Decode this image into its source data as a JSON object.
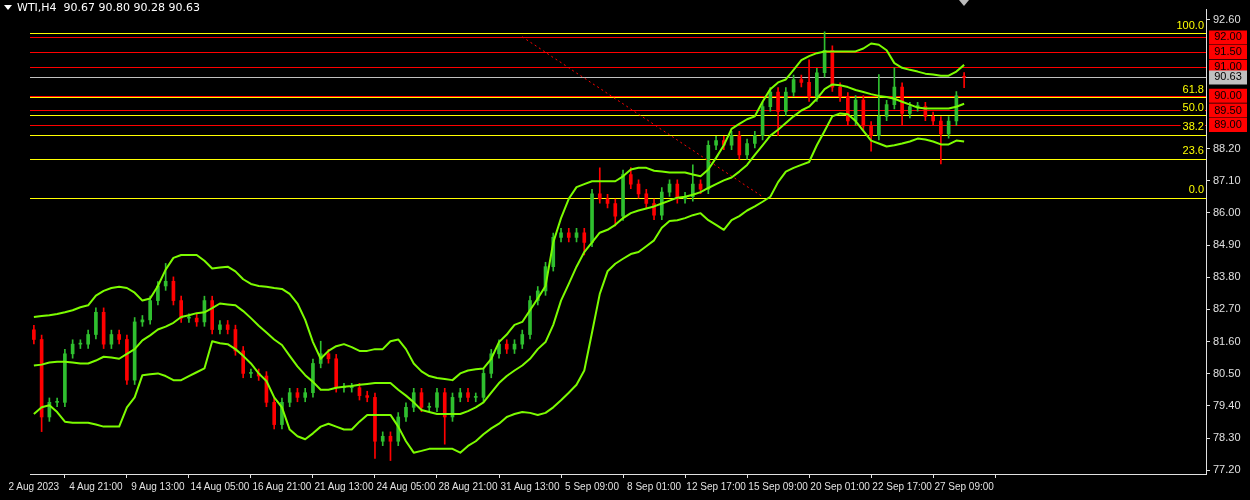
{
  "chart_data": {
    "type": "candlestick",
    "title": "WTI,H4  90.67 90.80 90.28 90.63",
    "categories": [
      "2 Aug 2023",
      null,
      null,
      null,
      null,
      null,
      null,
      null,
      "4 Aug 21:00",
      null,
      null,
      null,
      null,
      null,
      null,
      null,
      "9 Aug 13:00",
      null,
      null,
      null,
      null,
      null,
      null,
      null,
      "14 Aug 05:00",
      null,
      null,
      null,
      null,
      null,
      null,
      null,
      "16 Aug 21:00",
      null,
      null,
      null,
      null,
      null,
      null,
      null,
      "21 Aug 13:00",
      null,
      null,
      null,
      null,
      null,
      null,
      null,
      "24 Aug 05:00",
      null,
      null,
      null,
      null,
      null,
      null,
      null,
      "28 Aug 21:00",
      null,
      null,
      null,
      null,
      null,
      null,
      null,
      "31 Aug 13:00",
      null,
      null,
      null,
      null,
      null,
      null,
      null,
      "5 Sep 09:00",
      null,
      null,
      null,
      null,
      null,
      null,
      null,
      "8 Sep 01:00",
      null,
      null,
      null,
      null,
      null,
      null,
      null,
      "12 Sep 17:00",
      null,
      null,
      null,
      null,
      null,
      null,
      null,
      "15 Sep 09:00",
      null,
      null,
      null,
      null,
      null,
      null,
      null,
      "20 Sep 01:00",
      null,
      null,
      null,
      null,
      null,
      null,
      null,
      "22 Sep 17:00",
      null,
      null,
      null,
      null,
      null,
      null,
      null,
      "27 Sep 09:00"
    ],
    "ohlc": [
      [
        82.0,
        82.15,
        81.52,
        81.67
      ],
      [
        81.67,
        81.82,
        78.52,
        79.02
      ],
      [
        79.02,
        79.67,
        78.87,
        79.52
      ],
      [
        79.52,
        79.67,
        79.37,
        79.52
      ],
      [
        79.52,
        81.33,
        79.37,
        81.18
      ],
      [
        81.18,
        81.66,
        81.03,
        81.51
      ],
      [
        81.51,
        81.66,
        81.36,
        81.51
      ],
      [
        81.51,
        81.99,
        81.36,
        81.84
      ],
      [
        81.84,
        82.75,
        81.69,
        82.6
      ],
      [
        82.6,
        82.75,
        81.36,
        81.51
      ],
      [
        81.51,
        81.99,
        81.36,
        81.84
      ],
      [
        81.84,
        81.99,
        81.52,
        81.67
      ],
      [
        81.67,
        81.82,
        80.13,
        80.28
      ],
      [
        80.28,
        82.42,
        80.13,
        82.27
      ],
      [
        82.27,
        82.49,
        82.12,
        82.34
      ],
      [
        82.34,
        83.15,
        82.19,
        83.0
      ],
      [
        83.0,
        83.65,
        82.85,
        83.5
      ],
      [
        83.5,
        84.27,
        83.35,
        83.66
      ],
      [
        83.66,
        83.81,
        82.85,
        83.0
      ],
      [
        83.0,
        83.15,
        82.25,
        82.4
      ],
      [
        82.4,
        82.55,
        82.25,
        82.4
      ],
      [
        82.4,
        82.55,
        82.12,
        82.27
      ],
      [
        82.27,
        83.15,
        82.12,
        83.0
      ],
      [
        83.0,
        83.15,
        81.86,
        82.01
      ],
      [
        82.01,
        82.32,
        81.86,
        82.17
      ],
      [
        82.17,
        82.32,
        81.86,
        82.01
      ],
      [
        82.01,
        82.16,
        81.13,
        81.28
      ],
      [
        81.28,
        81.43,
        80.36,
        80.51
      ],
      [
        80.51,
        80.66,
        80.36,
        80.51
      ],
      [
        80.51,
        80.66,
        80.27,
        80.42
      ],
      [
        80.42,
        80.57,
        79.37,
        79.52
      ],
      [
        79.52,
        79.67,
        78.61,
        78.76
      ],
      [
        78.76,
        79.67,
        78.61,
        79.52
      ],
      [
        79.52,
        80.0,
        79.37,
        79.85
      ],
      [
        79.85,
        80.0,
        79.54,
        79.69
      ],
      [
        79.69,
        80.0,
        79.54,
        79.85
      ],
      [
        79.85,
        81.0,
        79.7,
        80.85
      ],
      [
        80.85,
        81.61,
        80.7,
        81.18
      ],
      [
        81.18,
        81.33,
        80.86,
        81.01
      ],
      [
        81.01,
        81.16,
        79.87,
        80.02
      ],
      [
        80.02,
        80.17,
        79.87,
        80.02
      ],
      [
        80.02,
        80.17,
        79.87,
        80.02
      ],
      [
        80.02,
        80.17,
        79.6,
        79.75
      ],
      [
        79.75,
        79.9,
        79.54,
        79.69
      ],
      [
        79.69,
        79.84,
        77.6,
        78.19
      ],
      [
        78.19,
        78.51,
        78.04,
        78.36
      ],
      [
        78.36,
        78.51,
        77.53,
        78.19
      ],
      [
        78.19,
        79.17,
        78.04,
        79.02
      ],
      [
        79.02,
        79.5,
        78.87,
        79.35
      ],
      [
        79.35,
        80.0,
        79.2,
        79.85
      ],
      [
        79.85,
        80.0,
        79.2,
        79.35
      ],
      [
        79.35,
        79.5,
        79.2,
        79.35
      ],
      [
        79.35,
        80.0,
        79.2,
        79.85
      ],
      [
        79.85,
        80.0,
        78.09,
        79.02
      ],
      [
        79.02,
        79.84,
        78.87,
        79.69
      ],
      [
        79.69,
        80.0,
        79.54,
        79.85
      ],
      [
        79.85,
        80.0,
        79.54,
        79.69
      ],
      [
        79.69,
        79.84,
        79.54,
        79.69
      ],
      [
        79.69,
        80.66,
        79.54,
        80.51
      ],
      [
        80.51,
        81.33,
        80.36,
        81.18
      ],
      [
        81.18,
        81.66,
        81.03,
        81.51
      ],
      [
        81.51,
        81.66,
        81.19,
        81.34
      ],
      [
        81.34,
        81.66,
        81.19,
        81.51
      ],
      [
        81.51,
        81.99,
        81.36,
        81.84
      ],
      [
        81.84,
        83.15,
        81.69,
        83.0
      ],
      [
        83.0,
        83.48,
        82.85,
        83.33
      ],
      [
        83.33,
        84.31,
        83.18,
        84.16
      ],
      [
        84.16,
        85.31,
        84.01,
        85.16
      ],
      [
        85.16,
        85.47,
        85.01,
        85.32
      ],
      [
        85.32,
        85.47,
        85.01,
        85.16
      ],
      [
        85.16,
        85.47,
        85.01,
        85.32
      ],
      [
        85.32,
        85.47,
        84.56,
        84.99
      ],
      [
        84.99,
        86.8,
        84.84,
        86.65
      ],
      [
        86.65,
        87.54,
        86.33,
        86.48
      ],
      [
        86.48,
        86.63,
        86.17,
        86.32
      ],
      [
        86.32,
        86.47,
        85.55,
        85.89
      ],
      [
        85.89,
        87.46,
        85.74,
        87.31
      ],
      [
        87.31,
        87.55,
        86.83,
        86.98
      ],
      [
        86.98,
        87.13,
        86.5,
        86.65
      ],
      [
        86.65,
        86.8,
        86.17,
        86.32
      ],
      [
        86.32,
        86.47,
        85.77,
        85.92
      ],
      [
        85.92,
        86.86,
        85.77,
        86.71
      ],
      [
        86.71,
        87.13,
        86.56,
        86.98
      ],
      [
        86.98,
        87.13,
        86.33,
        86.48
      ],
      [
        86.48,
        86.7,
        86.33,
        86.55
      ],
      [
        86.55,
        87.64,
        86.4,
        86.98
      ],
      [
        86.98,
        87.13,
        86.66,
        86.81
      ],
      [
        86.81,
        88.46,
        86.66,
        88.31
      ],
      [
        88.31,
        88.62,
        88.16,
        88.47
      ],
      [
        88.47,
        88.62,
        88.16,
        88.31
      ],
      [
        88.31,
        88.79,
        88.16,
        88.64
      ],
      [
        88.64,
        88.79,
        87.83,
        87.98
      ],
      [
        87.98,
        88.52,
        87.83,
        88.37
      ],
      [
        88.37,
        88.79,
        88.22,
        88.64
      ],
      [
        88.64,
        89.78,
        88.49,
        89.63
      ],
      [
        89.63,
        90.28,
        89.48,
        90.13
      ],
      [
        90.13,
        90.28,
        88.64,
        89.47
      ],
      [
        89.47,
        90.28,
        89.32,
        90.13
      ],
      [
        90.13,
        90.71,
        89.98,
        90.56
      ],
      [
        90.56,
        90.71,
        90.31,
        90.46
      ],
      [
        90.46,
        91.23,
        89.81,
        89.96
      ],
      [
        89.96,
        90.94,
        89.81,
        90.79
      ],
      [
        90.79,
        92.19,
        90.64,
        91.56
      ],
      [
        91.56,
        91.71,
        90.15,
        90.3
      ],
      [
        90.3,
        90.45,
        89.81,
        89.96
      ],
      [
        89.96,
        90.11,
        88.99,
        89.14
      ],
      [
        89.14,
        90.01,
        88.99,
        89.86
      ],
      [
        89.86,
        90.01,
        88.82,
        88.97
      ],
      [
        88.97,
        89.12,
        88.11,
        88.64
      ],
      [
        88.64,
        90.73,
        88.49,
        89.3
      ],
      [
        89.3,
        89.85,
        89.15,
        89.7
      ],
      [
        89.7,
        90.96,
        89.55,
        90.3
      ],
      [
        90.3,
        90.45,
        89.01,
        89.4
      ],
      [
        89.4,
        89.78,
        89.25,
        89.63
      ],
      [
        89.63,
        89.78,
        89.48,
        89.63
      ],
      [
        89.63,
        89.78,
        89.15,
        89.3
      ],
      [
        89.3,
        89.45,
        88.99,
        89.14
      ],
      [
        89.14,
        89.29,
        87.67,
        88.7
      ],
      [
        88.7,
        89.29,
        88.55,
        89.14
      ],
      [
        89.14,
        90.15,
        88.99,
        90.0
      ],
      [
        90.67,
        90.8,
        90.28,
        90.63
      ]
    ],
    "series": [
      {
        "type": "line",
        "color": "#7cfc00",
        "values": [
          82.44,
          82.47,
          82.5,
          82.54,
          82.6,
          82.67,
          82.77,
          82.84,
          83.17,
          83.33,
          83.43,
          83.47,
          83.43,
          83.27,
          83.0,
          83.07,
          83.5,
          84.06,
          84.46,
          84.56,
          84.56,
          84.56,
          84.36,
          84.1,
          84.13,
          84.16,
          84.0,
          83.73,
          83.57,
          83.5,
          83.47,
          83.43,
          83.4,
          83.23,
          82.9,
          82.34,
          81.58,
          81.01,
          81.28,
          81.44,
          81.51,
          81.41,
          81.28,
          81.28,
          81.34,
          81.34,
          81.61,
          81.67,
          81.34,
          80.85,
          80.58,
          80.42,
          80.35,
          80.32,
          80.28,
          80.51,
          80.61,
          80.65,
          80.68,
          81.01,
          81.58,
          81.84,
          82.17,
          82.27,
          82.67,
          83.07,
          83.5,
          84.99,
          85.82,
          86.48,
          86.88,
          86.98,
          87.08,
          87.08,
          87.08,
          87.08,
          87.25,
          87.48,
          87.54,
          87.54,
          87.44,
          87.41,
          87.38,
          87.38,
          87.38,
          87.31,
          87.25,
          87.48,
          87.88,
          88.31,
          88.87,
          89.04,
          89.2,
          89.3,
          89.8,
          90.23,
          90.46,
          90.56,
          90.89,
          91.22,
          91.36,
          91.46,
          91.52,
          91.52,
          91.52,
          91.52,
          91.52,
          91.62,
          91.79,
          91.75,
          91.56,
          91.12,
          90.96,
          90.89,
          90.83,
          90.76,
          90.73,
          90.69,
          90.69,
          90.83,
          91.06
        ]
      },
      {
        "type": "line",
        "color": "#7cfc00",
        "values": [
          80.78,
          80.81,
          80.88,
          80.91,
          80.91,
          80.88,
          80.85,
          80.85,
          80.95,
          81.08,
          81.05,
          81.01,
          81.18,
          81.34,
          81.64,
          81.81,
          82.01,
          82.11,
          82.24,
          82.44,
          82.5,
          82.57,
          82.6,
          82.74,
          82.9,
          82.87,
          82.84,
          82.64,
          82.4,
          82.14,
          81.91,
          81.67,
          81.48,
          81.11,
          80.75,
          80.45,
          80.22,
          79.95,
          79.95,
          80.02,
          80.05,
          80.08,
          80.12,
          80.15,
          80.18,
          80.18,
          80.18,
          79.95,
          79.75,
          79.52,
          79.26,
          79.19,
          79.12,
          79.12,
          79.12,
          79.12,
          79.22,
          79.35,
          79.52,
          79.85,
          80.18,
          80.42,
          80.61,
          80.78,
          81.01,
          81.34,
          81.58,
          82.17,
          83.0,
          83.57,
          84.16,
          84.66,
          84.99,
          85.32,
          85.42,
          85.59,
          85.82,
          85.99,
          86.08,
          86.15,
          86.22,
          86.32,
          86.42,
          86.52,
          86.55,
          86.62,
          86.71,
          86.85,
          86.98,
          87.11,
          87.21,
          87.41,
          87.64,
          87.98,
          88.31,
          88.64,
          88.84,
          89.07,
          89.3,
          89.5,
          89.63,
          89.9,
          90.23,
          90.39,
          90.36,
          90.3,
          90.2,
          90.13,
          90.06,
          90.0,
          89.96,
          89.9,
          89.8,
          89.7,
          89.6,
          89.57,
          89.57,
          89.57,
          89.57,
          89.63,
          89.73
        ]
      },
      {
        "type": "line",
        "color": "#7cfc00",
        "values": [
          79.12,
          79.35,
          79.42,
          79.19,
          78.86,
          78.82,
          78.82,
          78.82,
          78.76,
          78.69,
          78.69,
          78.69,
          79.35,
          79.69,
          80.45,
          80.48,
          80.51,
          80.42,
          80.28,
          80.28,
          80.42,
          80.55,
          80.68,
          81.61,
          81.54,
          81.51,
          81.34,
          81.11,
          80.85,
          80.51,
          80.25,
          79.69,
          79.35,
          78.59,
          78.36,
          78.26,
          78.46,
          78.69,
          78.79,
          78.69,
          78.59,
          78.59,
          78.86,
          79.09,
          79.09,
          79.09,
          79.09,
          78.69,
          78.19,
          77.8,
          77.86,
          77.93,
          77.93,
          77.93,
          77.93,
          77.8,
          78.03,
          78.19,
          78.43,
          78.63,
          78.79,
          79.02,
          79.12,
          79.19,
          79.16,
          79.09,
          79.16,
          79.35,
          79.59,
          79.85,
          80.12,
          80.61,
          81.91,
          83.23,
          84.0,
          84.26,
          84.43,
          84.59,
          84.66,
          84.86,
          85.06,
          85.49,
          85.72,
          85.75,
          85.82,
          85.92,
          85.99,
          85.75,
          85.59,
          85.42,
          85.75,
          85.89,
          86.08,
          86.22,
          86.38,
          86.55,
          87.05,
          87.41,
          87.54,
          87.64,
          87.74,
          88.31,
          88.8,
          89.3,
          89.4,
          89.37,
          89.14,
          88.8,
          88.47,
          88.37,
          88.27,
          88.31,
          88.37,
          88.44,
          88.54,
          88.51,
          88.44,
          88.34,
          88.34,
          88.47,
          88.44
        ]
      },
      {
        "type": "line",
        "color": "#ff0000",
        "line_style": "dotted",
        "values": [
          null,
          null,
          null,
          null,
          null,
          null,
          null,
          null,
          null,
          null,
          null,
          null,
          null,
          null,
          null,
          null,
          null,
          null,
          null,
          null,
          null,
          null,
          null,
          null,
          null,
          null,
          null,
          null,
          null,
          null,
          null,
          null,
          null,
          null,
          null,
          null,
          null,
          null,
          null,
          null,
          null,
          null,
          null,
          null,
          null,
          null,
          null,
          null,
          null,
          null,
          null,
          null,
          null,
          null,
          null,
          null,
          null,
          null,
          null,
          null,
          null,
          null,
          null,
          92.02,
          91.84,
          91.67,
          91.49,
          91.31,
          91.14,
          90.96,
          90.78,
          90.61,
          90.43,
          90.26,
          90.08,
          89.9,
          89.73,
          89.55,
          89.37,
          89.2,
          89.02,
          88.84,
          88.67,
          88.49,
          88.31,
          88.14,
          87.96,
          87.78,
          87.61,
          87.43,
          87.26,
          87.08,
          86.9,
          86.73,
          86.55,
          null,
          null,
          null,
          null,
          null,
          null,
          null,
          null,
          null,
          null,
          null,
          null,
          null,
          null,
          null,
          null,
          null,
          null,
          null,
          null,
          null,
          null,
          null,
          null,
          null,
          null
        ]
      }
    ],
    "ylim": [
      77.07,
      92.95
    ],
    "yticks": [
      {
        "value": 92.6,
        "label": "92.60"
      },
      {
        "value": 88.2,
        "label": "88.20"
      },
      {
        "value": 87.1,
        "label": "87.10"
      },
      {
        "value": 86.0,
        "label": "86.00"
      },
      {
        "value": 84.9,
        "label": "84.90"
      },
      {
        "value": 83.8,
        "label": "83.80"
      },
      {
        "value": 82.7,
        "label": "82.70"
      },
      {
        "value": 81.6,
        "label": "81.60"
      },
      {
        "value": 80.5,
        "label": "80.50"
      },
      {
        "value": 79.4,
        "label": "79.40"
      },
      {
        "value": 78.3,
        "label": "78.30"
      },
      {
        "value": 77.2,
        "label": "77.20"
      }
    ],
    "ref_lines": [
      {
        "axis": "y",
        "value": 92.14,
        "color": "#ffff00"
      },
      {
        "axis": "y",
        "value": 89.95,
        "color": "#ffff00"
      },
      {
        "axis": "y",
        "value": 89.33,
        "color": "#ffff00"
      },
      {
        "axis": "y",
        "value": 88.67,
        "color": "#ffff00"
      },
      {
        "axis": "y",
        "value": 87.85,
        "color": "#ffff00"
      },
      {
        "axis": "y",
        "value": 86.52,
        "color": "#ffff00"
      },
      {
        "axis": "y",
        "value": 92.0,
        "label": "92.00",
        "color": "#ff0000"
      },
      {
        "axis": "y",
        "value": 91.5,
        "label": "91.50",
        "color": "#ff0000"
      },
      {
        "axis": "y",
        "value": 91.0,
        "label": "91.00",
        "color": "#ff0000"
      },
      {
        "axis": "y",
        "value": 90.0,
        "label": "90.00",
        "color": "#ff0000"
      },
      {
        "axis": "y",
        "value": 89.5,
        "label": "89.50",
        "color": "#ff0000"
      },
      {
        "axis": "y",
        "value": 89.0,
        "label": "89.00",
        "color": "#ff0000"
      },
      {
        "axis": "y",
        "value": 90.63,
        "label": "90.63",
        "color": "#c0c0c0"
      }
    ],
    "annotations": [
      {
        "text": "100.0",
        "y": 92.14
      },
      {
        "text": "61.8",
        "y": 89.95
      },
      {
        "text": "50.0",
        "y": 89.33
      },
      {
        "text": "38.2",
        "y": 88.67
      },
      {
        "text": "23.6",
        "y": 87.85
      },
      {
        "text": "0.0",
        "y": 86.52
      }
    ]
  }
}
